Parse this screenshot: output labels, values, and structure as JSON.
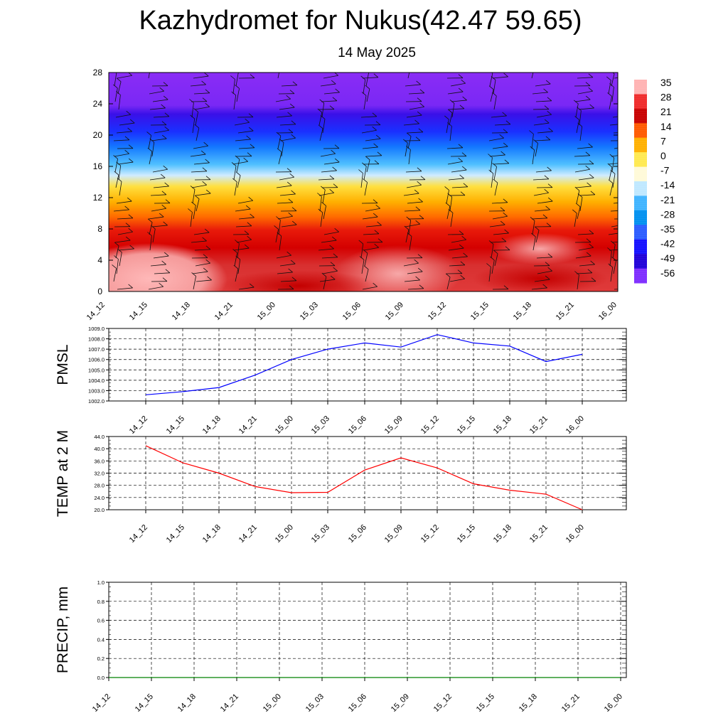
{
  "title": "Kazhydromet for Nukus(42.47 59.65)",
  "subtitle": "14 May 2025",
  "chart_data": [
    {
      "type": "heatmap",
      "name": "temperature-profile",
      "title": "",
      "ylabel": "",
      "ylim": [
        0,
        28
      ],
      "yticks": [
        "0",
        "4",
        "8",
        "12",
        "16",
        "20",
        "24",
        "28"
      ],
      "x_tick_labels": [
        "14_12",
        "14_15",
        "14_18",
        "14_21",
        "15_00",
        "15_03",
        "15_06",
        "15_09",
        "15_12",
        "15_15",
        "15_18",
        "15_21",
        "16_00"
      ],
      "colorbar_labels": [
        "35",
        "28",
        "21",
        "14",
        "7",
        "0",
        "-7",
        "-14",
        "-21",
        "-28",
        "-35",
        "-42",
        "-49",
        "-56"
      ],
      "colors": {
        "colorbar": [
          "#ffb3b3",
          "#ef2a2a",
          "#c80000",
          "#ff5a00",
          "#ffb000",
          "#ffea50",
          "#fffad8",
          "#bfe8ff",
          "#3fb4ff",
          "#0090f0",
          "#2a5cff",
          "#1410ff",
          "#2000d8",
          "#7e2cff"
        ]
      },
      "wind_barbs": true
    },
    {
      "type": "line",
      "name": "pmsl",
      "ylabel": "PMSL",
      "ylim": [
        1002.0,
        1009.0
      ],
      "yticks": [
        "1002.0",
        "1003.0",
        "1004.0",
        "1005.0",
        "1006.0",
        "1007.0",
        "1008.0",
        "1009.0"
      ],
      "x": [
        "14_12",
        "14_15",
        "14_18",
        "14_21",
        "15_00",
        "15_03",
        "15_06",
        "15_09",
        "15_12",
        "15_15",
        "15_18",
        "15_21",
        "16_00"
      ],
      "values": [
        1002.6,
        1002.9,
        1003.3,
        1004.5,
        1006.0,
        1007.0,
        1007.6,
        1007.2,
        1008.4,
        1007.6,
        1007.3,
        1005.8,
        1006.5
      ],
      "color": "#0000ff",
      "grid": true
    },
    {
      "type": "line",
      "name": "temp2m",
      "ylabel": "TEMP at 2 M",
      "ylim": [
        20.0,
        44.0
      ],
      "yticks": [
        "20.0",
        "24.0",
        "28.0",
        "32.0",
        "36.0",
        "40.0",
        "44.0"
      ],
      "x": [
        "14_12",
        "14_15",
        "14_18",
        "14_21",
        "15_00",
        "15_03",
        "15_06",
        "15_09",
        "15_12",
        "15_15",
        "15_18",
        "15_21",
        "16_00"
      ],
      "values": [
        41.0,
        35.4,
        32.0,
        27.6,
        25.6,
        25.7,
        33.0,
        37.0,
        33.7,
        28.5,
        26.4,
        25.1,
        20.0
      ],
      "color": "#ff0000",
      "grid": true
    },
    {
      "type": "line",
      "name": "precip",
      "ylabel": "PRECIP, mm",
      "ylim": [
        0.0,
        1.0
      ],
      "yticks": [
        "0.0",
        "0.2",
        "0.4",
        "0.6",
        "0.8",
        "1.0"
      ],
      "x": [
        "14_12",
        "14_15",
        "14_18",
        "14_21",
        "15_00",
        "15_03",
        "15_06",
        "15_09",
        "15_12",
        "15_15",
        "15_18",
        "15_21",
        "16_00"
      ],
      "values": [
        0,
        0,
        0,
        0,
        0,
        0,
        0,
        0,
        0,
        0,
        0,
        0,
        0
      ],
      "color": "#008000",
      "grid": true
    }
  ]
}
